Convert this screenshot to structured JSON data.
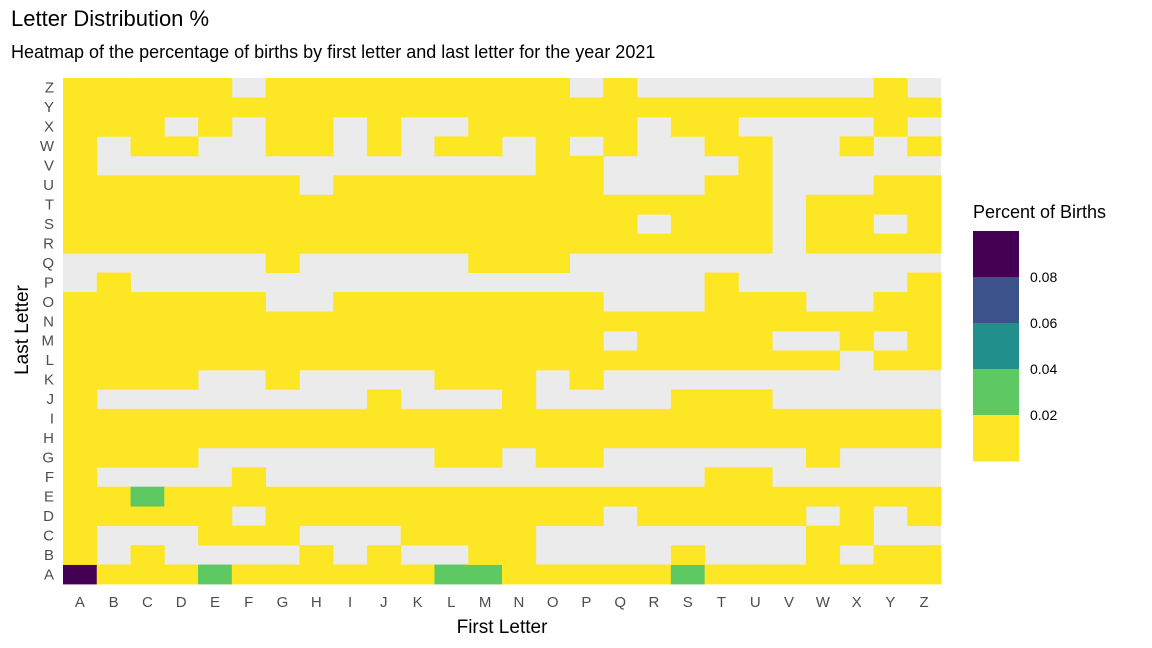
{
  "chart_data": {
    "type": "heatmap",
    "title": "Letter Distribution %",
    "subtitle": "Heatmap of the percentage of births by first letter and last letter for the year 2021",
    "xlabel": "First Letter",
    "ylabel": "Last Letter",
    "x_categories": [
      "A",
      "B",
      "C",
      "D",
      "E",
      "F",
      "G",
      "H",
      "I",
      "J",
      "K",
      "L",
      "M",
      "N",
      "O",
      "P",
      "Q",
      "R",
      "S",
      "T",
      "U",
      "V",
      "W",
      "X",
      "Y",
      "Z"
    ],
    "y_categories": [
      "A",
      "B",
      "C",
      "D",
      "E",
      "F",
      "G",
      "H",
      "I",
      "J",
      "K",
      "L",
      "M",
      "N",
      "O",
      "P",
      "Q",
      "R",
      "S",
      "T",
      "U",
      "V",
      "W",
      "X",
      "Y",
      "Z"
    ],
    "rows": [
      "VYYYGYYYYYYGGYYYYYGYYYYYYY",
      "Y.Y....Y.Y..YY....Y...Y.YY",
      "Y...YYY...YYYY........YY..",
      "YYYYY.YYYYYYYYYY.YYYYY.Y.Y",
      "YYGYYYYYYYYYYYYYYYYYYYYYYY",
      "Y....Y.............YY.....",
      "YYYY.......YY.YY......Y...",
      "YYYYYYYYYYYYYYYYYYYYYYYYYY",
      "YYYYYYYYYYYYYYYYYYYYYYYYYY",
      "Y........Y...Y....YYY.....",
      "YYYY..Y....YYY.Y..........",
      "YYYYYYYYYYYYYYYYYYYYYYY.YY",
      "YYYYYYYYYYYYYYYY.YYYY..Y.Y",
      "YYYYYYYYYYYYYYYYYYYYYYYYYY",
      "YYYYYY..YYYYYYYY...YYY..YY",
      ".Y.................Y.....Y",
      "......Y.....YYY...........",
      "YYYYYYYYYYYYYYYYYYYYY.YYYY",
      "YYYYYYYYYYYYYYYYY.YYY.YY.Y",
      "YYYYYYYYYYYYYYYYYYYYY.YYYY",
      "YYYYYYY.YYYYYYYY...YY...YY",
      "Y.............YY....Y.....",
      "Y.YY..YY.Y.YY.Y.Y..YY..Y.Y",
      "YYY.Y.YY.Y..YYYYY.YY....Y.",
      "YYYYYYYYYYYYYYYYYYYYYYYYYY",
      "YYYYY.YYYYYYYYY.Y.......Y."
    ],
    "cell_values": {
      "Y": 0.005,
      "G": 0.03,
      "V": 0.09,
      ".": null
    },
    "legend": {
      "title": "Percent of Births",
      "labels": [
        "0.08",
        "0.06",
        "0.04",
        "0.02"
      ],
      "colors": [
        "#440154",
        "#3b528b",
        "#21908c",
        "#5ec962",
        "#fde725"
      ]
    },
    "na_color": "#ebebeb",
    "grid": false,
    "legend_position": "right"
  }
}
